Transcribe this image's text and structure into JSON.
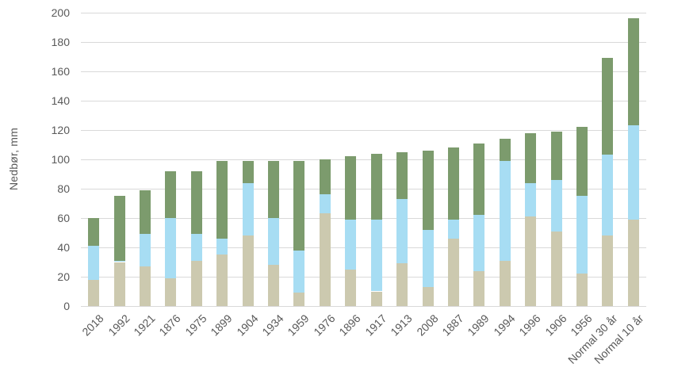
{
  "chart_data": {
    "type": "bar",
    "stacked": true,
    "title": "",
    "xlabel": "",
    "ylabel": "Nedbør, mm",
    "ylim": [
      0,
      200
    ],
    "ytick_step": 20,
    "grid": true,
    "legend": false,
    "categories": [
      "2018",
      "1992",
      "1921",
      "1876",
      "1975",
      "1899",
      "1904",
      "1934",
      "1959",
      "1976",
      "1896",
      "1917",
      "1913",
      "2008",
      "1887",
      "1989",
      "1994",
      "1996",
      "1906",
      "1956",
      "Normal 30 år",
      "Normal 10 år"
    ],
    "series": [
      {
        "name": "segment-bottom-beige",
        "color": "#ccc9af",
        "values": [
          18,
          30,
          27,
          19,
          31,
          35,
          48,
          28,
          9,
          63,
          25,
          10,
          29,
          13,
          46,
          24,
          31,
          61,
          51,
          22,
          48,
          59
        ]
      },
      {
        "name": "segment-middle-blue",
        "color": "#a7ddf3",
        "values": [
          23,
          1,
          22,
          41,
          18,
          11,
          36,
          32,
          29,
          13,
          34,
          49,
          44,
          39,
          13,
          38,
          68,
          23,
          35,
          53,
          55,
          64
        ]
      },
      {
        "name": "segment-top-green",
        "color": "#7c9b6d",
        "values": [
          19,
          44,
          30,
          32,
          43,
          53,
          15,
          39,
          61,
          24,
          43,
          45,
          32,
          54,
          49,
          49,
          15,
          34,
          33,
          47,
          66,
          73
        ]
      }
    ],
    "totals": [
      60,
      75,
      79,
      92,
      92,
      99,
      99,
      99,
      99,
      100,
      102,
      104,
      105,
      106,
      108,
      111,
      114,
      118,
      119,
      122,
      169,
      196
    ],
    "colors": {
      "gridline": "#d9d9d9",
      "axis_line": "#d9d9d9",
      "tick_text": "#595959",
      "background": "#ffffff"
    }
  }
}
